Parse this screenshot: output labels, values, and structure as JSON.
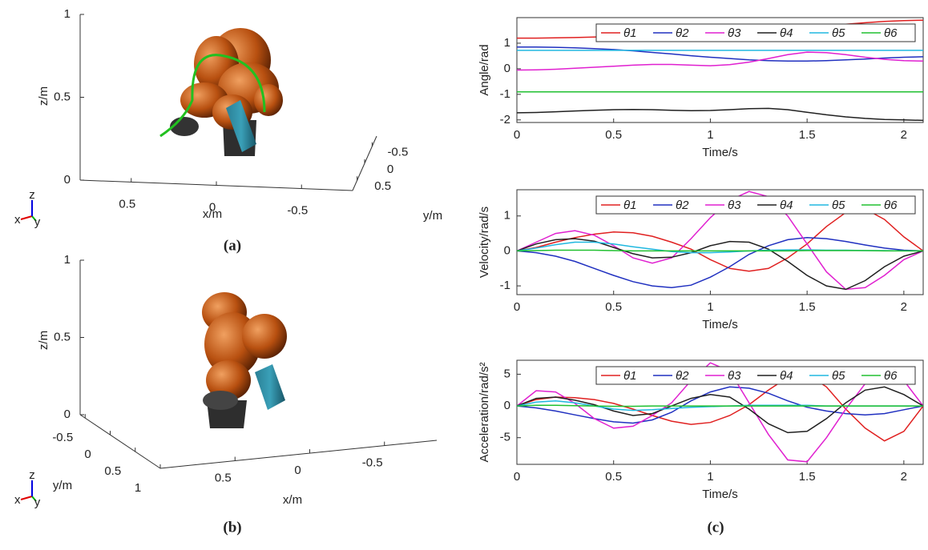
{
  "chart_data": [
    {
      "type": "axes3d",
      "xlabel": "x/m",
      "ylabel": "y/m",
      "zlabel": "z/m",
      "xlim": [
        0.8,
        -0.8
      ],
      "ylim": [
        0.8,
        -0.8
      ],
      "zlim": [
        0,
        1
      ],
      "xticks": [
        0.5,
        0,
        -0.5
      ],
      "yticks": [
        -0.5,
        0,
        0.5
      ],
      "zticks": [
        0,
        0.5,
        1
      ],
      "triad": [
        "x",
        "y",
        "z"
      ]
    },
    {
      "type": "axes3d",
      "xlabel": "x/m",
      "ylabel": "y/m",
      "zlabel": "z/m",
      "xlim": [
        1,
        -0.85
      ],
      "ylim": [
        -0.6,
        1
      ],
      "zlim": [
        0,
        1
      ],
      "xticks": [
        0.5,
        0,
        -0.5
      ],
      "yticks": [
        -0.5,
        0,
        0.5,
        1
      ],
      "zticks": [
        0,
        0.5,
        1
      ],
      "triad": [
        "x",
        "y",
        "z"
      ]
    },
    {
      "type": "line",
      "xlabel": "Time/s",
      "ylabel": "Angle/rad",
      "xlim": [
        0,
        2.1
      ],
      "ylim": [
        -2.1,
        2
      ],
      "xticks": [
        0,
        0.5,
        1,
        1.5,
        2
      ],
      "yticks": [
        -2,
        -1,
        0,
        1
      ],
      "legend": "upper right",
      "x": [
        0,
        0.1,
        0.2,
        0.3,
        0.4,
        0.5,
        0.6,
        0.7,
        0.8,
        0.9,
        1,
        1.1,
        1.2,
        1.3,
        1.4,
        1.5,
        1.6,
        1.7,
        1.8,
        1.9,
        2,
        2.1
      ],
      "series": [
        {
          "name": "θ1",
          "color": "#e02020",
          "values": [
            1.2,
            1.2,
            1.21,
            1.22,
            1.24,
            1.26,
            1.28,
            1.3,
            1.33,
            1.36,
            1.4,
            1.44,
            1.48,
            1.53,
            1.58,
            1.63,
            1.68,
            1.74,
            1.8,
            1.85,
            1.88,
            1.9
          ]
        },
        {
          "name": "θ2",
          "color": "#2030c0",
          "values": [
            0.85,
            0.85,
            0.84,
            0.82,
            0.79,
            0.75,
            0.7,
            0.64,
            0.58,
            0.51,
            0.45,
            0.4,
            0.35,
            0.32,
            0.3,
            0.3,
            0.32,
            0.35,
            0.38,
            0.42,
            0.45,
            0.47
          ]
        },
        {
          "name": "θ3",
          "color": "#e020d0",
          "values": [
            -0.05,
            -0.04,
            -0.02,
            0.02,
            0.06,
            0.1,
            0.14,
            0.17,
            0.17,
            0.14,
            0.12,
            0.16,
            0.26,
            0.4,
            0.55,
            0.65,
            0.63,
            0.55,
            0.45,
            0.37,
            0.32,
            0.3
          ]
        },
        {
          "name": "θ4",
          "color": "#202020",
          "values": [
            -1.72,
            -1.71,
            -1.68,
            -1.65,
            -1.62,
            -1.6,
            -1.59,
            -1.6,
            -1.62,
            -1.64,
            -1.63,
            -1.6,
            -1.56,
            -1.55,
            -1.6,
            -1.7,
            -1.8,
            -1.88,
            -1.94,
            -1.98,
            -2,
            -2.02
          ]
        },
        {
          "name": "θ5",
          "color": "#20b8e0",
          "values": [
            0.72,
            0.72,
            0.72,
            0.72,
            0.72,
            0.72,
            0.72,
            0.72,
            0.72,
            0.72,
            0.72,
            0.72,
            0.72,
            0.72,
            0.72,
            0.72,
            0.72,
            0.72,
            0.72,
            0.72,
            0.72,
            0.72
          ]
        },
        {
          "name": "θ6",
          "color": "#20c030",
          "values": [
            -0.9,
            -0.9,
            -0.9,
            -0.9,
            -0.9,
            -0.9,
            -0.9,
            -0.9,
            -0.9,
            -0.9,
            -0.9,
            -0.9,
            -0.9,
            -0.9,
            -0.9,
            -0.9,
            -0.9,
            -0.9,
            -0.9,
            -0.9,
            -0.9,
            -0.9
          ]
        }
      ]
    },
    {
      "type": "line",
      "xlabel": "Time/s",
      "ylabel": "Velocity/rad/s",
      "xlim": [
        0,
        2.1
      ],
      "ylim": [
        -1.25,
        1.75
      ],
      "xticks": [
        0,
        0.5,
        1,
        1.5,
        2
      ],
      "yticks": [
        -1,
        0,
        1
      ],
      "legend": "upper right",
      "x": [
        0,
        0.1,
        0.2,
        0.3,
        0.4,
        0.5,
        0.6,
        0.7,
        0.8,
        0.9,
        1,
        1.1,
        1.2,
        1.3,
        1.4,
        1.5,
        1.6,
        1.7,
        1.8,
        1.9,
        2,
        2.1
      ],
      "series": [
        {
          "name": "θ1",
          "color": "#e02020",
          "values": [
            0,
            0.1,
            0.25,
            0.38,
            0.48,
            0.54,
            0.52,
            0.42,
            0.25,
            0.05,
            -0.25,
            -0.5,
            -0.58,
            -0.5,
            -0.2,
            0.2,
            0.7,
            1.1,
            1.2,
            0.9,
            0.4,
            0
          ]
        },
        {
          "name": "θ2",
          "color": "#2030c0",
          "values": [
            0,
            -0.05,
            -0.15,
            -0.3,
            -0.5,
            -0.7,
            -0.88,
            -1,
            -1.05,
            -0.98,
            -0.75,
            -0.45,
            -0.1,
            0.15,
            0.32,
            0.38,
            0.35,
            0.27,
            0.17,
            0.08,
            0.02,
            0
          ]
        },
        {
          "name": "θ3",
          "color": "#e020d0",
          "values": [
            0,
            0.25,
            0.5,
            0.58,
            0.45,
            0.15,
            -0.2,
            -0.35,
            -0.2,
            0.35,
            0.95,
            1.45,
            1.7,
            1.55,
            1,
            0.2,
            -0.6,
            -1.1,
            -1.05,
            -0.7,
            -0.25,
            0
          ]
        },
        {
          "name": "θ4",
          "color": "#202020",
          "values": [
            0,
            0.2,
            0.32,
            0.35,
            0.28,
            0.1,
            -0.08,
            -0.2,
            -0.18,
            -0.05,
            0.15,
            0.27,
            0.25,
            0.05,
            -0.3,
            -0.7,
            -1,
            -1.1,
            -0.85,
            -0.45,
            -0.15,
            0
          ]
        },
        {
          "name": "θ5",
          "color": "#20b8e0",
          "values": [
            0,
            0.08,
            0.18,
            0.25,
            0.25,
            0.2,
            0.12,
            0.05,
            -0.02,
            -0.05,
            -0.05,
            -0.03,
            0,
            0.02,
            0.03,
            0.03,
            0.02,
            0.02,
            0.01,
            0.01,
            0,
            0
          ]
        },
        {
          "name": "θ6",
          "color": "#20c030",
          "values": [
            0,
            0.01,
            0.02,
            0.02,
            0.02,
            0.01,
            0,
            0,
            0,
            0,
            0,
            0,
            0,
            0,
            0,
            0.01,
            0.01,
            0.01,
            0.01,
            0,
            0,
            0
          ]
        }
      ]
    },
    {
      "type": "line",
      "xlabel": "Time/s",
      "ylabel": "Acceleration/rad/s²",
      "xlim": [
        0,
        2.1
      ],
      "ylim": [
        -9.2,
        7.2
      ],
      "xticks": [
        0,
        0.5,
        1,
        1.5,
        2
      ],
      "yticks": [
        -5,
        0,
        5
      ],
      "legend": "upper right",
      "x": [
        0,
        0.1,
        0.2,
        0.3,
        0.4,
        0.5,
        0.6,
        0.7,
        0.8,
        0.9,
        1,
        1.1,
        1.2,
        1.3,
        1.4,
        1.5,
        1.6,
        1.7,
        1.8,
        1.9,
        2,
        2.1
      ],
      "series": [
        {
          "name": "θ1",
          "color": "#e02020",
          "values": [
            0,
            1,
            1.4,
            1.3,
            1,
            0.4,
            -0.5,
            -1.5,
            -2.4,
            -2.9,
            -2.6,
            -1.5,
            0.2,
            2.5,
            4.5,
            5,
            3,
            -0.5,
            -3.5,
            -5.5,
            -4,
            0
          ]
        },
        {
          "name": "θ2",
          "color": "#2030c0",
          "values": [
            0,
            -0.3,
            -0.8,
            -1.4,
            -2,
            -2.5,
            -2.7,
            -2.2,
            -1,
            0.8,
            2.2,
            3,
            2.8,
            2,
            0.8,
            -0.2,
            -0.8,
            -1.2,
            -1.4,
            -1.2,
            -0.6,
            0
          ]
        },
        {
          "name": "θ3",
          "color": "#e020d0",
          "values": [
            0,
            2.4,
            2.2,
            0.4,
            -2,
            -3.5,
            -3.2,
            -1.5,
            0.5,
            4,
            6.8,
            5.5,
            0.5,
            -4.5,
            -8.5,
            -8.8,
            -5,
            -0.5,
            3.5,
            5.5,
            4,
            0
          ]
        },
        {
          "name": "θ4",
          "color": "#202020",
          "values": [
            0,
            1.2,
            1.4,
            0.9,
            0.2,
            -0.8,
            -1.5,
            -1.2,
            0,
            1.2,
            1.8,
            1.4,
            -0.5,
            -2.8,
            -4.2,
            -4,
            -2,
            0.5,
            2.5,
            3,
            1.8,
            0
          ]
        },
        {
          "name": "θ5",
          "color": "#20b8e0",
          "values": [
            0,
            0.6,
            0.8,
            0.5,
            0,
            -0.5,
            -0.7,
            -0.6,
            -0.4,
            -0.2,
            -0.1,
            0,
            0.1,
            0.1,
            0.1,
            0.1,
            0,
            0,
            0,
            0,
            0,
            0
          ]
        },
        {
          "name": "θ6",
          "color": "#20c030",
          "values": [
            0,
            0.1,
            0.1,
            0.05,
            0,
            -0.05,
            -0.05,
            0,
            0,
            0,
            0,
            0,
            0,
            0,
            0,
            0,
            0,
            0,
            0,
            0,
            0,
            0
          ]
        }
      ]
    }
  ],
  "captions": [
    "(a)",
    "(b)",
    "(c)"
  ]
}
